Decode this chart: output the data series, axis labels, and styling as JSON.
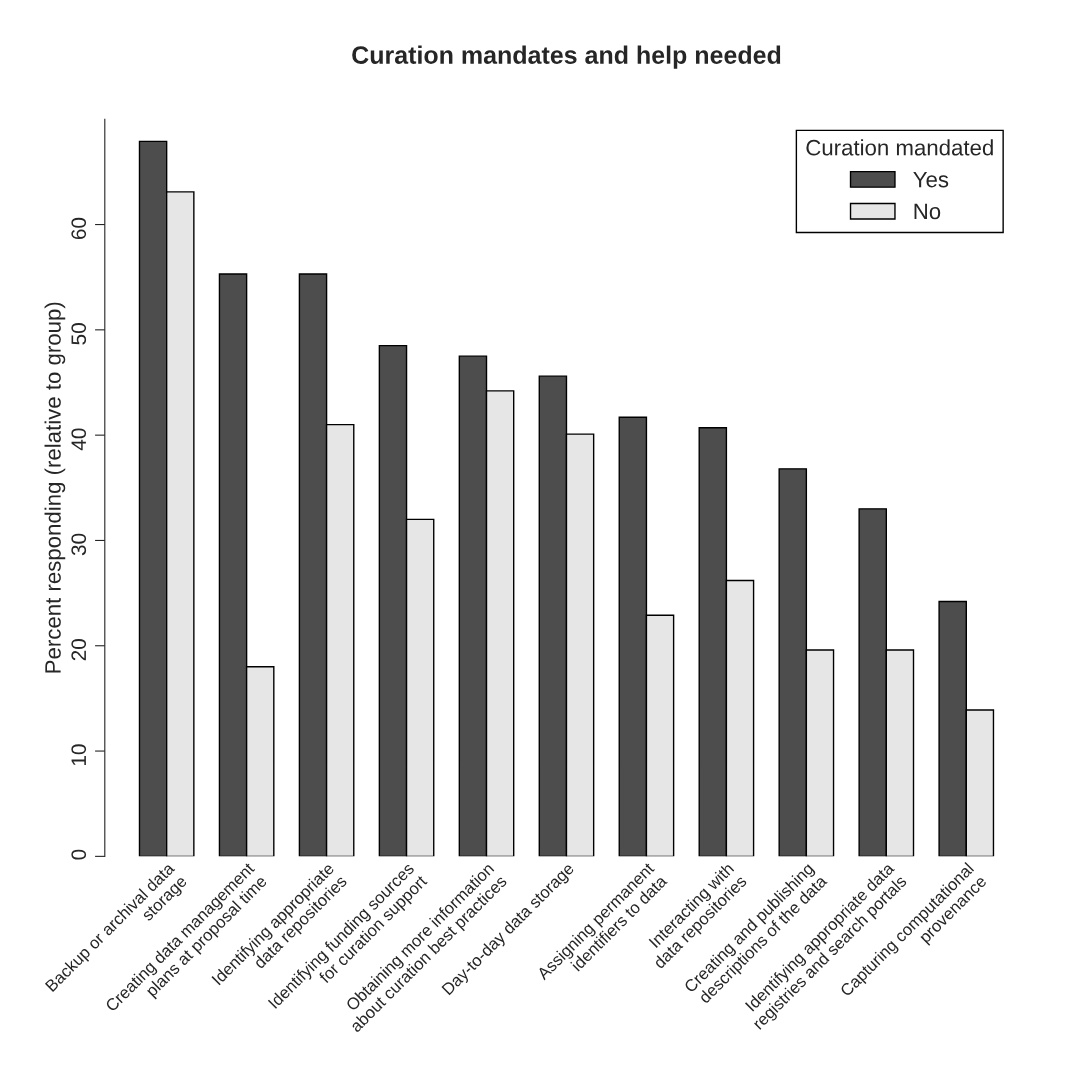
{
  "chart_data": {
    "type": "bar",
    "title": "Curation mandates and help needed",
    "ylabel": "Percent responding (relative to group)",
    "legend_title": "Curation mandated",
    "categories": [
      "Backup or archival data\nstorage",
      "Creating data management\nplans at proposal time",
      "Identifying appropriate\ndata repositories",
      "Identifying funding sources\nfor curation support",
      "Obtaining more information\nabout curation best practices",
      "Day-to-day data storage",
      "Assigning permanent\nidentifiers to data",
      "Interacting with\ndata repositories",
      "Creating and publishing\ndescriptions of the data",
      "Identifying appropriate data\nregistries and search portals",
      "Capturing computational\nprovenance"
    ],
    "series": [
      {
        "name": "Yes",
        "color": "#4d4d4d",
        "values": [
          67.9,
          55.3,
          55.3,
          48.5,
          47.5,
          45.6,
          41.7,
          40.7,
          36.8,
          33.0,
          24.2
        ]
      },
      {
        "name": "No",
        "color": "#e6e6e6",
        "values": [
          63.1,
          18.0,
          41.0,
          32.0,
          44.2,
          40.1,
          22.9,
          26.2,
          19.6,
          19.6,
          13.9
        ]
      }
    ],
    "ylim": [
      0,
      70
    ],
    "yticks": [
      0,
      10,
      20,
      30,
      40,
      50,
      60
    ],
    "grid": false,
    "legend": "top right"
  }
}
